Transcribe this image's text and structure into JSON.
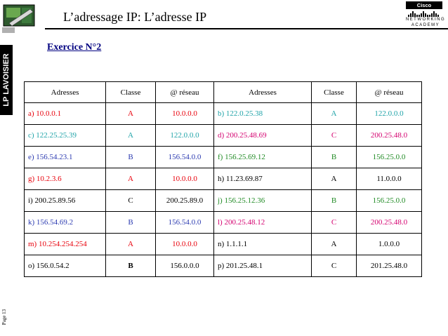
{
  "header": {
    "title": "L’adressage IP: L’adresse IP"
  },
  "sidebar": {
    "school": "LP LAVOISIER",
    "page": "Page 13"
  },
  "logo": {
    "cisco_top": "Cisco Systems",
    "cisco_line1": "NETWORKING",
    "cisco_line2": "ACADEMY"
  },
  "exercise": {
    "title": "Exercice N°2"
  },
  "colors": {
    "red": "#e8000b",
    "blue": "#2b3ab0",
    "teal": "#1fa3a8",
    "green": "#1f8a23",
    "magenta": "#d4006f",
    "black": "#000000",
    "navy": "#000080"
  },
  "table": {
    "headers": [
      "Adresses",
      "Classe",
      "@ réseau",
      "Adresses",
      "Classe",
      "@ réseau"
    ],
    "rows": [
      {
        "left": {
          "addr": "a)  10.0.0.1",
          "cls": "A",
          "net": "10.0.0.0",
          "color": "red"
        },
        "right": {
          "addr": "b)  122.0.25.38",
          "cls": "A",
          "net": "122.0.0.0",
          "color": "teal"
        }
      },
      {
        "left": {
          "addr": "c)  122.25.25.39",
          "cls": "A",
          "net": "122.0.0.0",
          "color": "teal"
        },
        "right": {
          "addr": "d)   200.25.48.69",
          "cls": "C",
          "net": "200.25.48.0",
          "color": "magenta"
        }
      },
      {
        "left": {
          "addr": "e)  156.54.23.1",
          "cls": "B",
          "net": "156.54.0.0",
          "color": "blue"
        },
        "right": {
          "addr": "f)  156.25.69.12",
          "cls": "B",
          "net": "156.25.0.0",
          "color": "green"
        }
      },
      {
        "left": {
          "addr": "g)  10.2.3.6",
          "cls": "A",
          "net": "10.0.0.0",
          "color": "red"
        },
        "right": {
          "addr": "h)   11.23.69.87",
          "cls": "A",
          "net": "11.0.0.0",
          "color": "black"
        }
      },
      {
        "left": {
          "addr": "i)   200.25.89.56",
          "cls": "C",
          "net": "200.25.89.0",
          "color": "black"
        },
        "right": {
          "addr": "j)  156.25.12.36",
          "cls": "B",
          "net": "156.25.0.0",
          "color": "green"
        }
      },
      {
        "left": {
          "addr": "k)  156.54.69.2",
          "cls": "B",
          "net": "156.54.0.0",
          "color": "blue"
        },
        "right": {
          "addr": "l) 200.25.48.12",
          "cls": "C",
          "net": "200.25.48.0",
          "color": "magenta"
        }
      },
      {
        "left": {
          "addr": "m) 10.254.254.254",
          "cls": "A",
          "net": "10.0.0.0",
          "color": "red"
        },
        "right": {
          "addr": "n)  1.1.1.1",
          "cls": "A",
          "net": "1.0.0.0",
          "color": "black"
        }
      },
      {
        "left": {
          "addr": "o)  156.0.54.2",
          "cls": "B",
          "net": "156.0.0.0",
          "color": "black"
        },
        "right": {
          "addr": "p)   201.25.48.1",
          "cls": "C",
          "net": "201.25.48.0",
          "color": "black"
        }
      }
    ]
  }
}
